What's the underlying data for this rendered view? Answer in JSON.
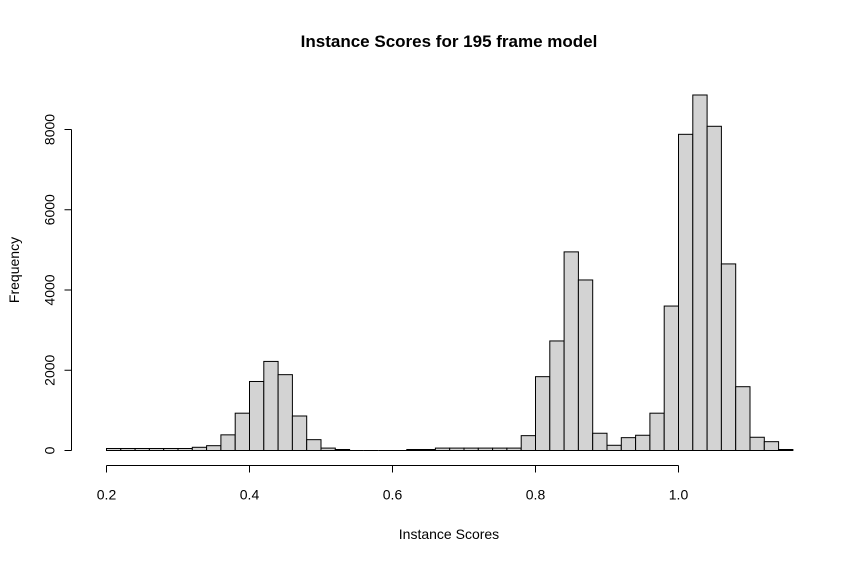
{
  "chart_data": {
    "type": "bar",
    "title": "Instance Scores for 195 frame model",
    "xlabel": "Instance Scores",
    "ylabel": "Frequency",
    "bin_width": 0.02,
    "bin_start": 0.2,
    "xlim": [
      0.2,
      1.12
    ],
    "ylim": [
      0,
      8900
    ],
    "x_ticks": [
      0.2,
      0.4,
      0.6,
      0.8,
      1.0
    ],
    "x_tick_labels": [
      "0.2",
      "0.4",
      "0.6",
      "0.8",
      "1.0"
    ],
    "y_ticks": [
      0,
      2000,
      4000,
      6000,
      8000
    ],
    "y_tick_labels": [
      "0",
      "2000",
      "4000",
      "6000",
      "8000"
    ],
    "grid": false,
    "legend": "none",
    "bar_fill": "#d3d3d3",
    "bar_stroke": "#000000",
    "values": [
      50,
      50,
      50,
      50,
      50,
      50,
      80,
      120,
      390,
      930,
      1720,
      2220,
      1890,
      860,
      270,
      60,
      25,
      0,
      0,
      0,
      0,
      25,
      25,
      60,
      60,
      60,
      60,
      60,
      60,
      370,
      1840,
      2730,
      4950,
      4250,
      430,
      130,
      320,
      380,
      930,
      3600,
      7880,
      8860,
      8080,
      4650,
      1590,
      330,
      220,
      25
    ]
  }
}
